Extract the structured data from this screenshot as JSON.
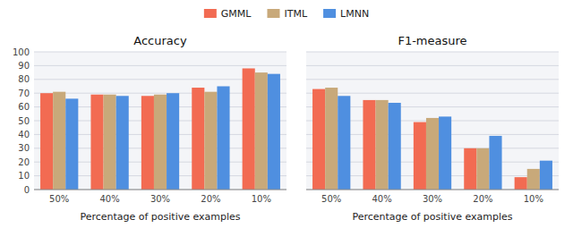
{
  "chart_data": [
    {
      "type": "bar",
      "title": "Accuracy",
      "xlabel": "Percentage of positive examples",
      "categories": [
        "50%",
        "40%",
        "30%",
        "20%",
        "10%"
      ],
      "series": [
        {
          "name": "GMML",
          "color": "#F26B52",
          "values": [
            70,
            69,
            68,
            74,
            88
          ]
        },
        {
          "name": "ITML",
          "color": "#C8A97A",
          "values": [
            71,
            69,
            69,
            71,
            85
          ]
        },
        {
          "name": "LMNN",
          "color": "#4F8FE0",
          "values": [
            66,
            68,
            70,
            75,
            84
          ]
        }
      ],
      "ylim": [
        0,
        100
      ],
      "yticks": [
        0,
        10,
        20,
        30,
        40,
        50,
        60,
        70,
        80,
        90,
        100
      ],
      "grid": true,
      "legend": "top"
    },
    {
      "type": "bar",
      "title": "F1-measure",
      "xlabel": "Percentage of positive examples",
      "categories": [
        "50%",
        "40%",
        "30%",
        "20%",
        "10%"
      ],
      "series": [
        {
          "name": "GMML",
          "color": "#F26B52",
          "values": [
            73,
            65,
            49,
            30,
            9
          ]
        },
        {
          "name": "ITML",
          "color": "#C8A97A",
          "values": [
            74,
            65,
            52,
            30,
            15
          ]
        },
        {
          "name": "LMNN",
          "color": "#4F8FE0",
          "values": [
            68,
            63,
            53,
            39,
            21
          ]
        }
      ],
      "ylim": [
        0,
        100
      ],
      "yticks": [
        0,
        10,
        20,
        30,
        40,
        50,
        60,
        70,
        80,
        90,
        100
      ],
      "grid": true,
      "tick_labels": "x"
    }
  ]
}
